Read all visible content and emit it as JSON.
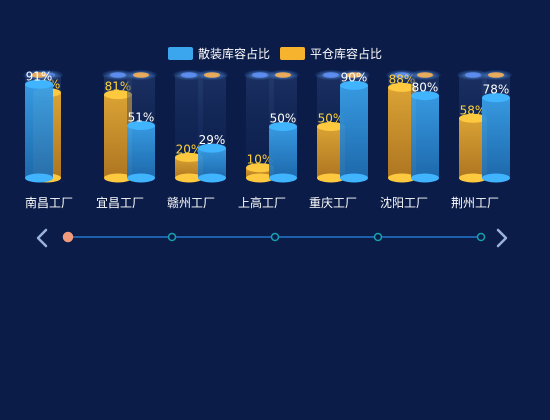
{
  "chart_data": {
    "type": "bar",
    "categories": [
      "南昌工厂",
      "宜昌工厂",
      "赣州工厂",
      "上高工厂",
      "重庆工厂",
      "沈阳工厂",
      "荆州工厂"
    ],
    "series": [
      {
        "name": "散装库容占比",
        "unit": "%",
        "values": [
          91,
          51,
          29,
          50,
          90,
          80,
          78
        ]
      },
      {
        "name": "平仓库容占比",
        "unit": "%",
        "values": [
          83,
          81,
          20,
          10,
          50,
          88,
          58
        ]
      }
    ],
    "ylim": [
      0,
      100
    ],
    "legend_position": "top-center",
    "colors": {
      "bulk": "#3ba6ee",
      "bulk_top": "#40b4ff",
      "flat": "#f5b32e",
      "flat_top": "#ffc93f",
      "bulk_label": "#ffffff",
      "flat_label": "#ffd23a",
      "background": "#0b1c49"
    }
  },
  "navigation": {
    "prev_icon": "chevron-left-icon",
    "next_icon": "chevron-right-icon",
    "dot_count": 5,
    "active_dot_index": 0,
    "active_dot_color": "#f29a7c",
    "dot_color": "#16a2b0",
    "track_color": "#1d5fa8"
  }
}
